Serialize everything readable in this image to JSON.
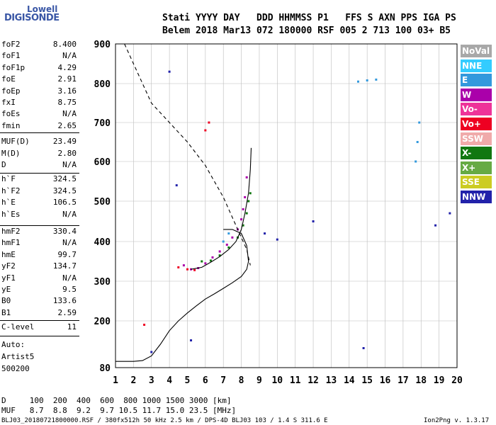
{
  "logo": {
    "line1": "Lowell",
    "line2": "DIGISONDE"
  },
  "header": {
    "line1": "Stati YYYY DAY   DDD HHMMSS P1   FFS S AXN PPS IGA PS",
    "line2": "Belem 2018 Mar13 072 180000 RSF 005 2 713 100 03+ B5"
  },
  "params": [
    {
      "k": "foF2",
      "v": "8.400"
    },
    {
      "k": "foF1",
      "v": "N/A"
    },
    {
      "k": "foF1p",
      "v": "4.29"
    },
    {
      "k": "foE",
      "v": "2.91"
    },
    {
      "k": "foEp",
      "v": "3.16"
    },
    {
      "k": "fxI",
      "v": "8.75"
    },
    {
      "k": "foEs",
      "v": "N/A"
    },
    {
      "k": "fmin",
      "v": "2.65"
    },
    {
      "k": "MUF(D)",
      "v": "23.49"
    },
    {
      "k": "M(D)",
      "v": "2.80"
    },
    {
      "k": "D",
      "v": "N/A"
    },
    {
      "k": "h`F",
      "v": "324.5"
    },
    {
      "k": "h`F2",
      "v": "324.5"
    },
    {
      "k": "h`E",
      "v": "106.5"
    },
    {
      "k": "h`Es",
      "v": "N/A"
    },
    {
      "k": "hmF2",
      "v": "330.4"
    },
    {
      "k": "hmF1",
      "v": "N/A"
    },
    {
      "k": "hmE",
      "v": "99.7"
    },
    {
      "k": "yF2",
      "v": "134.7"
    },
    {
      "k": "yF1",
      "v": "N/A"
    },
    {
      "k": "yE",
      "v": "9.5"
    },
    {
      "k": "B0",
      "v": "133.6"
    },
    {
      "k": "B1",
      "v": "2.59"
    },
    {
      "k": "C-level",
      "v": "11"
    }
  ],
  "auto": {
    "line1": "Auto:",
    "line2": "Artist5",
    "line3": "500200"
  },
  "legend": [
    {
      "label": "NoVal",
      "color": "#a8a8a8"
    },
    {
      "label": "NNE",
      "color": "#33ccff"
    },
    {
      "label": "E",
      "color": "#3399dd"
    },
    {
      "label": "W",
      "color": "#aa00aa"
    },
    {
      "label": "Vo-",
      "color": "#ee3399"
    },
    {
      "label": "Vo+",
      "color": "#ee0022"
    },
    {
      "label": "SSW",
      "color": "#f0aaaa"
    },
    {
      "label": "X-",
      "color": "#117711"
    },
    {
      "label": "X+",
      "color": "#66aa44"
    },
    {
      "label": "SSE",
      "color": "#cccc22"
    },
    {
      "label": "NNW",
      "color": "#2222aa"
    }
  ],
  "muf_table": {
    "d_label": "D",
    "d_values": [
      "100",
      "200",
      "400",
      "600",
      "800",
      "1000",
      "1500",
      "3000"
    ],
    "d_unit": "[km]",
    "muf_label": "MUF",
    "muf_values": [
      "8.7",
      "8.8",
      "9.2",
      "9.7",
      "10.5",
      "11.7",
      "15.0",
      "23.5"
    ],
    "muf_unit": "[MHz]"
  },
  "footer": {
    "left": "BLJ03_20180721800000.RSF / 380fx512h 50 kHz 2.5 km / DPS-4D BLJ03 103 / 1.4 S 311.6 E",
    "right": "Ion2Png v. 1.3.17"
  },
  "chart_data": {
    "type": "scatter",
    "xlim": [
      1,
      20
    ],
    "ylim": [
      80,
      900
    ],
    "x_ticks": [
      "1",
      "2",
      "3",
      "4",
      "5",
      "6",
      "7",
      "8",
      "9",
      "10",
      "11",
      "12",
      "13",
      "14",
      "15",
      "16",
      "17",
      "18",
      "19",
      "20"
    ],
    "y_ticks": [
      "80",
      "200",
      "300",
      "400",
      "500",
      "600",
      "700",
      "800",
      "900"
    ],
    "y_tick_values": [
      80,
      200,
      300,
      400,
      500,
      600,
      700,
      800,
      900
    ],
    "grid": true,
    "legend_position": "right",
    "series": [
      {
        "name": "W",
        "color": "#aa00aa",
        "points": [
          [
            4.8,
            340
          ],
          [
            5.2,
            330
          ],
          [
            5.6,
            333
          ],
          [
            6.0,
            345
          ],
          [
            6.4,
            360
          ],
          [
            6.8,
            375
          ],
          [
            7.2,
            392
          ],
          [
            7.5,
            410
          ],
          [
            7.8,
            430
          ],
          [
            8.0,
            455
          ],
          [
            8.1,
            480
          ],
          [
            8.2,
            510
          ],
          [
            8.3,
            560
          ]
        ]
      },
      {
        "name": "X-",
        "color": "#117711",
        "points": [
          [
            5.8,
            350
          ],
          [
            6.3,
            352
          ],
          [
            6.8,
            365
          ],
          [
            7.3,
            385
          ],
          [
            7.8,
            410
          ],
          [
            8.1,
            440
          ],
          [
            8.3,
            470
          ],
          [
            8.4,
            500
          ],
          [
            8.5,
            520
          ]
        ]
      },
      {
        "name": "Vo+",
        "color": "#ee0022",
        "points": [
          [
            4.5,
            335
          ],
          [
            5.0,
            330
          ],
          [
            5.4,
            328
          ],
          [
            2.6,
            190
          ],
          [
            6.0,
            680
          ],
          [
            6.2,
            700
          ]
        ]
      },
      {
        "name": "E",
        "color": "#3399dd",
        "points": [
          [
            7.0,
            400
          ],
          [
            7.3,
            420
          ],
          [
            14.5,
            805
          ],
          [
            15.0,
            808
          ],
          [
            15.5,
            810
          ],
          [
            17.7,
            600
          ],
          [
            17.8,
            650
          ],
          [
            17.9,
            700
          ]
        ]
      },
      {
        "name": "NNW",
        "color": "#2222aa",
        "points": [
          [
            3.0,
            120
          ],
          [
            4.0,
            830
          ],
          [
            4.4,
            540
          ],
          [
            5.2,
            150
          ],
          [
            9.3,
            420
          ],
          [
            10.0,
            405
          ],
          [
            12.0,
            450
          ],
          [
            14.8,
            130
          ],
          [
            18.8,
            440
          ],
          [
            19.6,
            470
          ]
        ]
      }
    ],
    "profile_curve": [
      [
        1,
        96
      ],
      [
        2,
        96
      ],
      [
        2.5,
        98
      ],
      [
        3,
        110
      ],
      [
        3.5,
        140
      ],
      [
        4,
        175
      ],
      [
        4.5,
        200
      ],
      [
        5,
        220
      ],
      [
        5.5,
        238
      ],
      [
        6,
        255
      ],
      [
        6.5,
        268
      ],
      [
        7,
        282
      ],
      [
        7.5,
        296
      ],
      [
        8,
        312
      ],
      [
        8.3,
        330
      ],
      [
        8.4,
        350
      ],
      [
        8.3,
        390
      ],
      [
        8.0,
        420
      ],
      [
        7.5,
        430
      ],
      [
        7.0,
        430
      ]
    ],
    "solid_trace": [
      [
        5.2,
        330
      ],
      [
        5.8,
        335
      ],
      [
        6.3,
        348
      ],
      [
        6.8,
        362
      ],
      [
        7.3,
        380
      ],
      [
        7.7,
        400
      ],
      [
        8.0,
        430
      ],
      [
        8.2,
        470
      ],
      [
        8.4,
        520
      ],
      [
        8.5,
        580
      ],
      [
        8.55,
        635
      ]
    ],
    "dashed_trace": [
      [
        1.5,
        900
      ],
      [
        2.0,
        850
      ],
      [
        3.0,
        750
      ],
      [
        4.0,
        700
      ],
      [
        5.0,
        650
      ],
      [
        6.0,
        590
      ],
      [
        7.0,
        510
      ],
      [
        7.6,
        450
      ],
      [
        8.0,
        410
      ],
      [
        8.3,
        380
      ],
      [
        8.5,
        340
      ]
    ]
  }
}
